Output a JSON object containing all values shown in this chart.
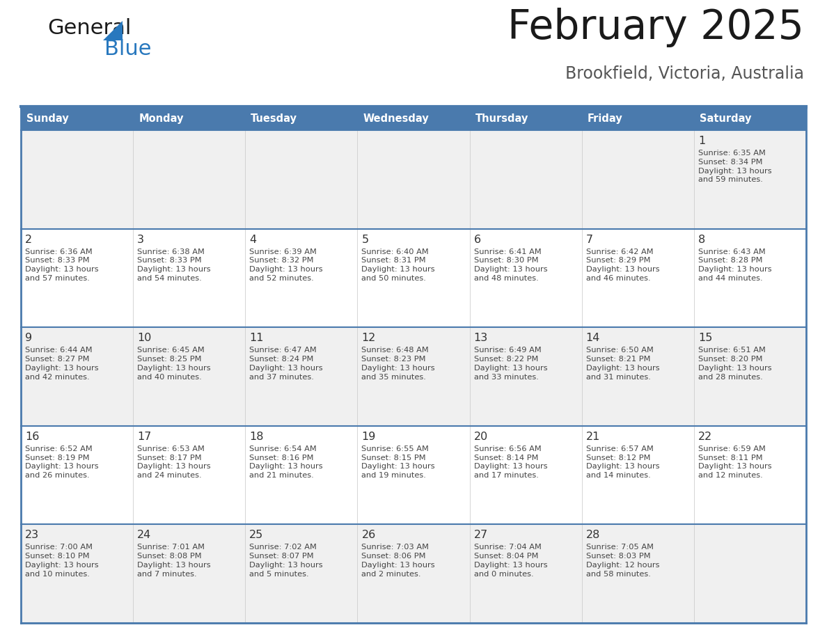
{
  "title": "February 2025",
  "subtitle": "Brookfield, Victoria, Australia",
  "header_bg": "#4a7aad",
  "header_text_color": "#ffffff",
  "day_names": [
    "Sunday",
    "Monday",
    "Tuesday",
    "Wednesday",
    "Thursday",
    "Friday",
    "Saturday"
  ],
  "row1_bg": "#f0f0f0",
  "row2_bg": "#ffffff",
  "border_color": "#4a7aad",
  "cell_border_color": "#cccccc",
  "text_color": "#444444",
  "day_number_color": "#333333",
  "calendar": [
    [
      null,
      null,
      null,
      null,
      null,
      null,
      {
        "day": "1",
        "sunrise": "6:35 AM",
        "sunset": "8:34 PM",
        "daylight": "13 hours\nand 59 minutes."
      }
    ],
    [
      {
        "day": "2",
        "sunrise": "6:36 AM",
        "sunset": "8:33 PM",
        "daylight": "13 hours\nand 57 minutes."
      },
      {
        "day": "3",
        "sunrise": "6:38 AM",
        "sunset": "8:33 PM",
        "daylight": "13 hours\nand 54 minutes."
      },
      {
        "day": "4",
        "sunrise": "6:39 AM",
        "sunset": "8:32 PM",
        "daylight": "13 hours\nand 52 minutes."
      },
      {
        "day": "5",
        "sunrise": "6:40 AM",
        "sunset": "8:31 PM",
        "daylight": "13 hours\nand 50 minutes."
      },
      {
        "day": "6",
        "sunrise": "6:41 AM",
        "sunset": "8:30 PM",
        "daylight": "13 hours\nand 48 minutes."
      },
      {
        "day": "7",
        "sunrise": "6:42 AM",
        "sunset": "8:29 PM",
        "daylight": "13 hours\nand 46 minutes."
      },
      {
        "day": "8",
        "sunrise": "6:43 AM",
        "sunset": "8:28 PM",
        "daylight": "13 hours\nand 44 minutes."
      }
    ],
    [
      {
        "day": "9",
        "sunrise": "6:44 AM",
        "sunset": "8:27 PM",
        "daylight": "13 hours\nand 42 minutes."
      },
      {
        "day": "10",
        "sunrise": "6:45 AM",
        "sunset": "8:25 PM",
        "daylight": "13 hours\nand 40 minutes."
      },
      {
        "day": "11",
        "sunrise": "6:47 AM",
        "sunset": "8:24 PM",
        "daylight": "13 hours\nand 37 minutes."
      },
      {
        "day": "12",
        "sunrise": "6:48 AM",
        "sunset": "8:23 PM",
        "daylight": "13 hours\nand 35 minutes."
      },
      {
        "day": "13",
        "sunrise": "6:49 AM",
        "sunset": "8:22 PM",
        "daylight": "13 hours\nand 33 minutes."
      },
      {
        "day": "14",
        "sunrise": "6:50 AM",
        "sunset": "8:21 PM",
        "daylight": "13 hours\nand 31 minutes."
      },
      {
        "day": "15",
        "sunrise": "6:51 AM",
        "sunset": "8:20 PM",
        "daylight": "13 hours\nand 28 minutes."
      }
    ],
    [
      {
        "day": "16",
        "sunrise": "6:52 AM",
        "sunset": "8:19 PM",
        "daylight": "13 hours\nand 26 minutes."
      },
      {
        "day": "17",
        "sunrise": "6:53 AM",
        "sunset": "8:17 PM",
        "daylight": "13 hours\nand 24 minutes."
      },
      {
        "day": "18",
        "sunrise": "6:54 AM",
        "sunset": "8:16 PM",
        "daylight": "13 hours\nand 21 minutes."
      },
      {
        "day": "19",
        "sunrise": "6:55 AM",
        "sunset": "8:15 PM",
        "daylight": "13 hours\nand 19 minutes."
      },
      {
        "day": "20",
        "sunrise": "6:56 AM",
        "sunset": "8:14 PM",
        "daylight": "13 hours\nand 17 minutes."
      },
      {
        "day": "21",
        "sunrise": "6:57 AM",
        "sunset": "8:12 PM",
        "daylight": "13 hours\nand 14 minutes."
      },
      {
        "day": "22",
        "sunrise": "6:59 AM",
        "sunset": "8:11 PM",
        "daylight": "13 hours\nand 12 minutes."
      }
    ],
    [
      {
        "day": "23",
        "sunrise": "7:00 AM",
        "sunset": "8:10 PM",
        "daylight": "13 hours\nand 10 minutes."
      },
      {
        "day": "24",
        "sunrise": "7:01 AM",
        "sunset": "8:08 PM",
        "daylight": "13 hours\nand 7 minutes."
      },
      {
        "day": "25",
        "sunrise": "7:02 AM",
        "sunset": "8:07 PM",
        "daylight": "13 hours\nand 5 minutes."
      },
      {
        "day": "26",
        "sunrise": "7:03 AM",
        "sunset": "8:06 PM",
        "daylight": "13 hours\nand 2 minutes."
      },
      {
        "day": "27",
        "sunrise": "7:04 AM",
        "sunset": "8:04 PM",
        "daylight": "13 hours\nand 0 minutes."
      },
      {
        "day": "28",
        "sunrise": "7:05 AM",
        "sunset": "8:03 PM",
        "daylight": "12 hours\nand 58 minutes."
      },
      null
    ]
  ],
  "logo_color_general": "#1a1a1a",
  "logo_color_blue": "#2878be"
}
